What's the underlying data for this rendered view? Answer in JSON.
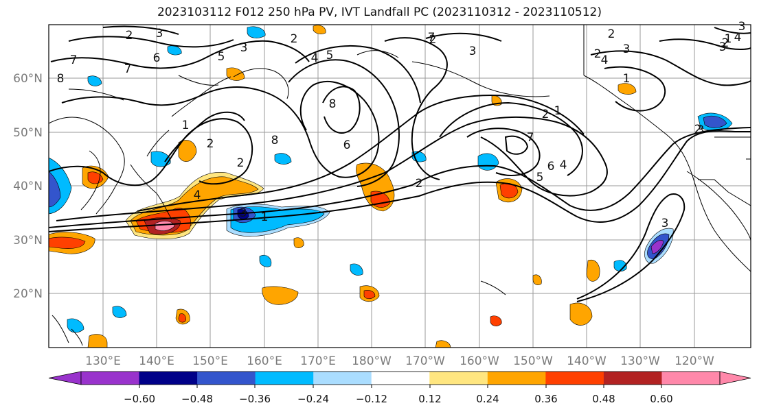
{
  "title": "2023103112 F012 250 hPa PV, IVT Landfall PC (2023110312 - 2023110512)",
  "lat_labels": [
    "60°N",
    "50°N",
    "40°N",
    "30°N",
    "20°N"
  ],
  "lon_labels": [
    "130°E",
    "140°E",
    "150°E",
    "160°E",
    "170°E",
    "180°W",
    "170°W",
    "160°W",
    "150°W",
    "140°W",
    "130°W",
    "120°W"
  ],
  "colorbar": {
    "ticks": [
      "−0.60",
      "−0.48",
      "−0.36",
      "−0.24",
      "−0.12",
      "0.12",
      "0.24",
      "0.36",
      "0.48",
      "0.60"
    ],
    "colors": [
      "#9933cc",
      "#000088",
      "#3355cc",
      "#00bbff",
      "#aaddff",
      "#ffffff",
      "#ffe680",
      "#ffa500",
      "#ff4000",
      "#b22222",
      "#ff88aa",
      "#ff88aa"
    ]
  },
  "contour_labels": [
    "2",
    "3",
    "7",
    "6",
    "5",
    "8",
    "7",
    "3",
    "2",
    "4",
    "5",
    "8",
    "6",
    "7",
    "1",
    "2",
    "8",
    "3",
    "4",
    "1",
    "2",
    "2",
    "3",
    "2",
    "4",
    "3",
    "1",
    "2",
    "7",
    "6",
    "5",
    "4",
    "3",
    "1",
    "2",
    "1",
    "2",
    "3",
    "2",
    "3",
    "4",
    "3",
    "2"
  ]
}
